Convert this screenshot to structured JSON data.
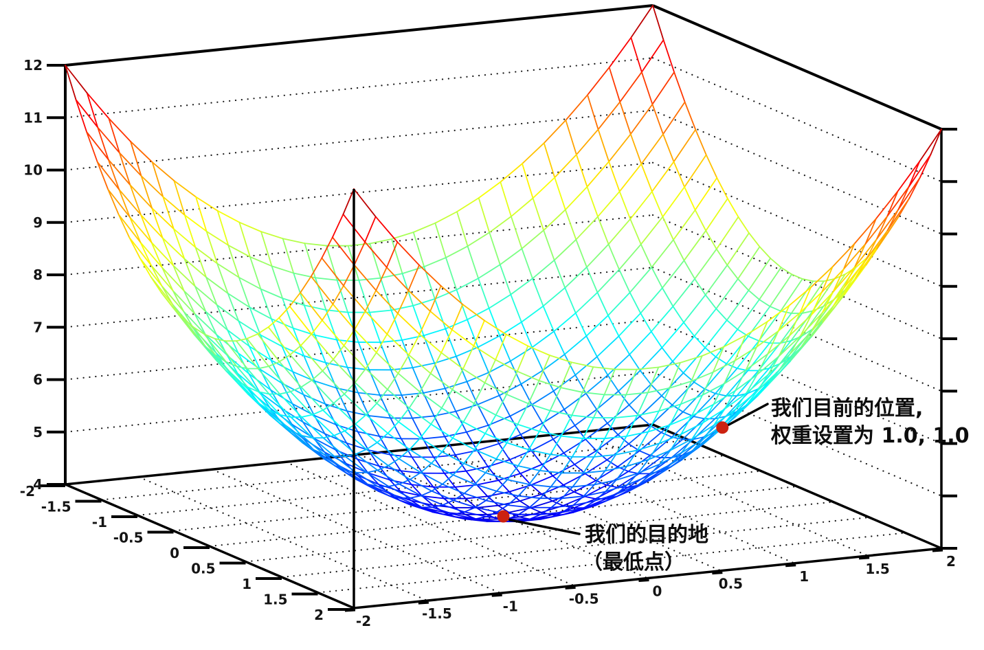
{
  "chart_data": {
    "type": "surface",
    "title": "",
    "function": "z = x^2 + y^2 + 4",
    "x_range": [
      -2,
      2
    ],
    "y_range": [
      -2,
      2
    ],
    "z_range": [
      4,
      12
    ],
    "x_ticks": [
      "-2",
      "-1.5",
      "-1",
      "-0.5",
      "0",
      "0.5",
      "1",
      "1.5",
      "2"
    ],
    "y_ticks": [
      "-2",
      "-1.5",
      "-1",
      "-0.5",
      "0",
      "0.5",
      "1",
      "1.5",
      "2"
    ],
    "z_ticks": [
      "4",
      "5",
      "6",
      "7",
      "8",
      "9",
      "10",
      "11",
      "12"
    ],
    "mesh_points": 28,
    "colormap": "jet",
    "wall_grid_z": [
      5,
      6,
      7,
      8,
      9,
      10,
      11
    ],
    "floor_grid_step": 0.5,
    "grid_style": "dotted",
    "markers": [
      {
        "id": "current-position",
        "x": 1.0,
        "y": 1.0,
        "z": 6.0,
        "color": "#cc2211",
        "label_line1": "我们目前的位置,",
        "label_line2": "权重设置为 1.0, 1.0"
      },
      {
        "id": "destination",
        "x": 0.0,
        "y": 0.0,
        "z": 4.0,
        "color": "#cc2211",
        "label_line1": "我们的目的地",
        "label_line2": "（最低点）"
      }
    ]
  },
  "colors": {
    "axis": "#000000",
    "grid_dots": "#1a1a1a",
    "annotation_text": "#0d0d0d",
    "marker": "#cc2211",
    "background": "#ffffff"
  }
}
